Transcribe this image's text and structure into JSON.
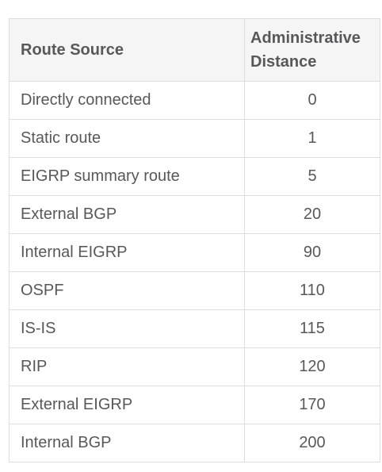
{
  "table": {
    "headers": {
      "route_source": "Route Source",
      "administrative_distance": "Administrative Distance"
    },
    "rows": [
      {
        "source": "Directly connected",
        "distance": "0"
      },
      {
        "source": "Static route",
        "distance": "1"
      },
      {
        "source": "EIGRP summary route",
        "distance": "5"
      },
      {
        "source": "External BGP",
        "distance": "20"
      },
      {
        "source": "Internal EIGRP",
        "distance": "90"
      },
      {
        "source": "OSPF",
        "distance": "110"
      },
      {
        "source": "IS-IS",
        "distance": "115"
      },
      {
        "source": "RIP",
        "distance": "120"
      },
      {
        "source": "External EIGRP",
        "distance": "170"
      },
      {
        "source": "Internal BGP",
        "distance": "200"
      }
    ]
  }
}
